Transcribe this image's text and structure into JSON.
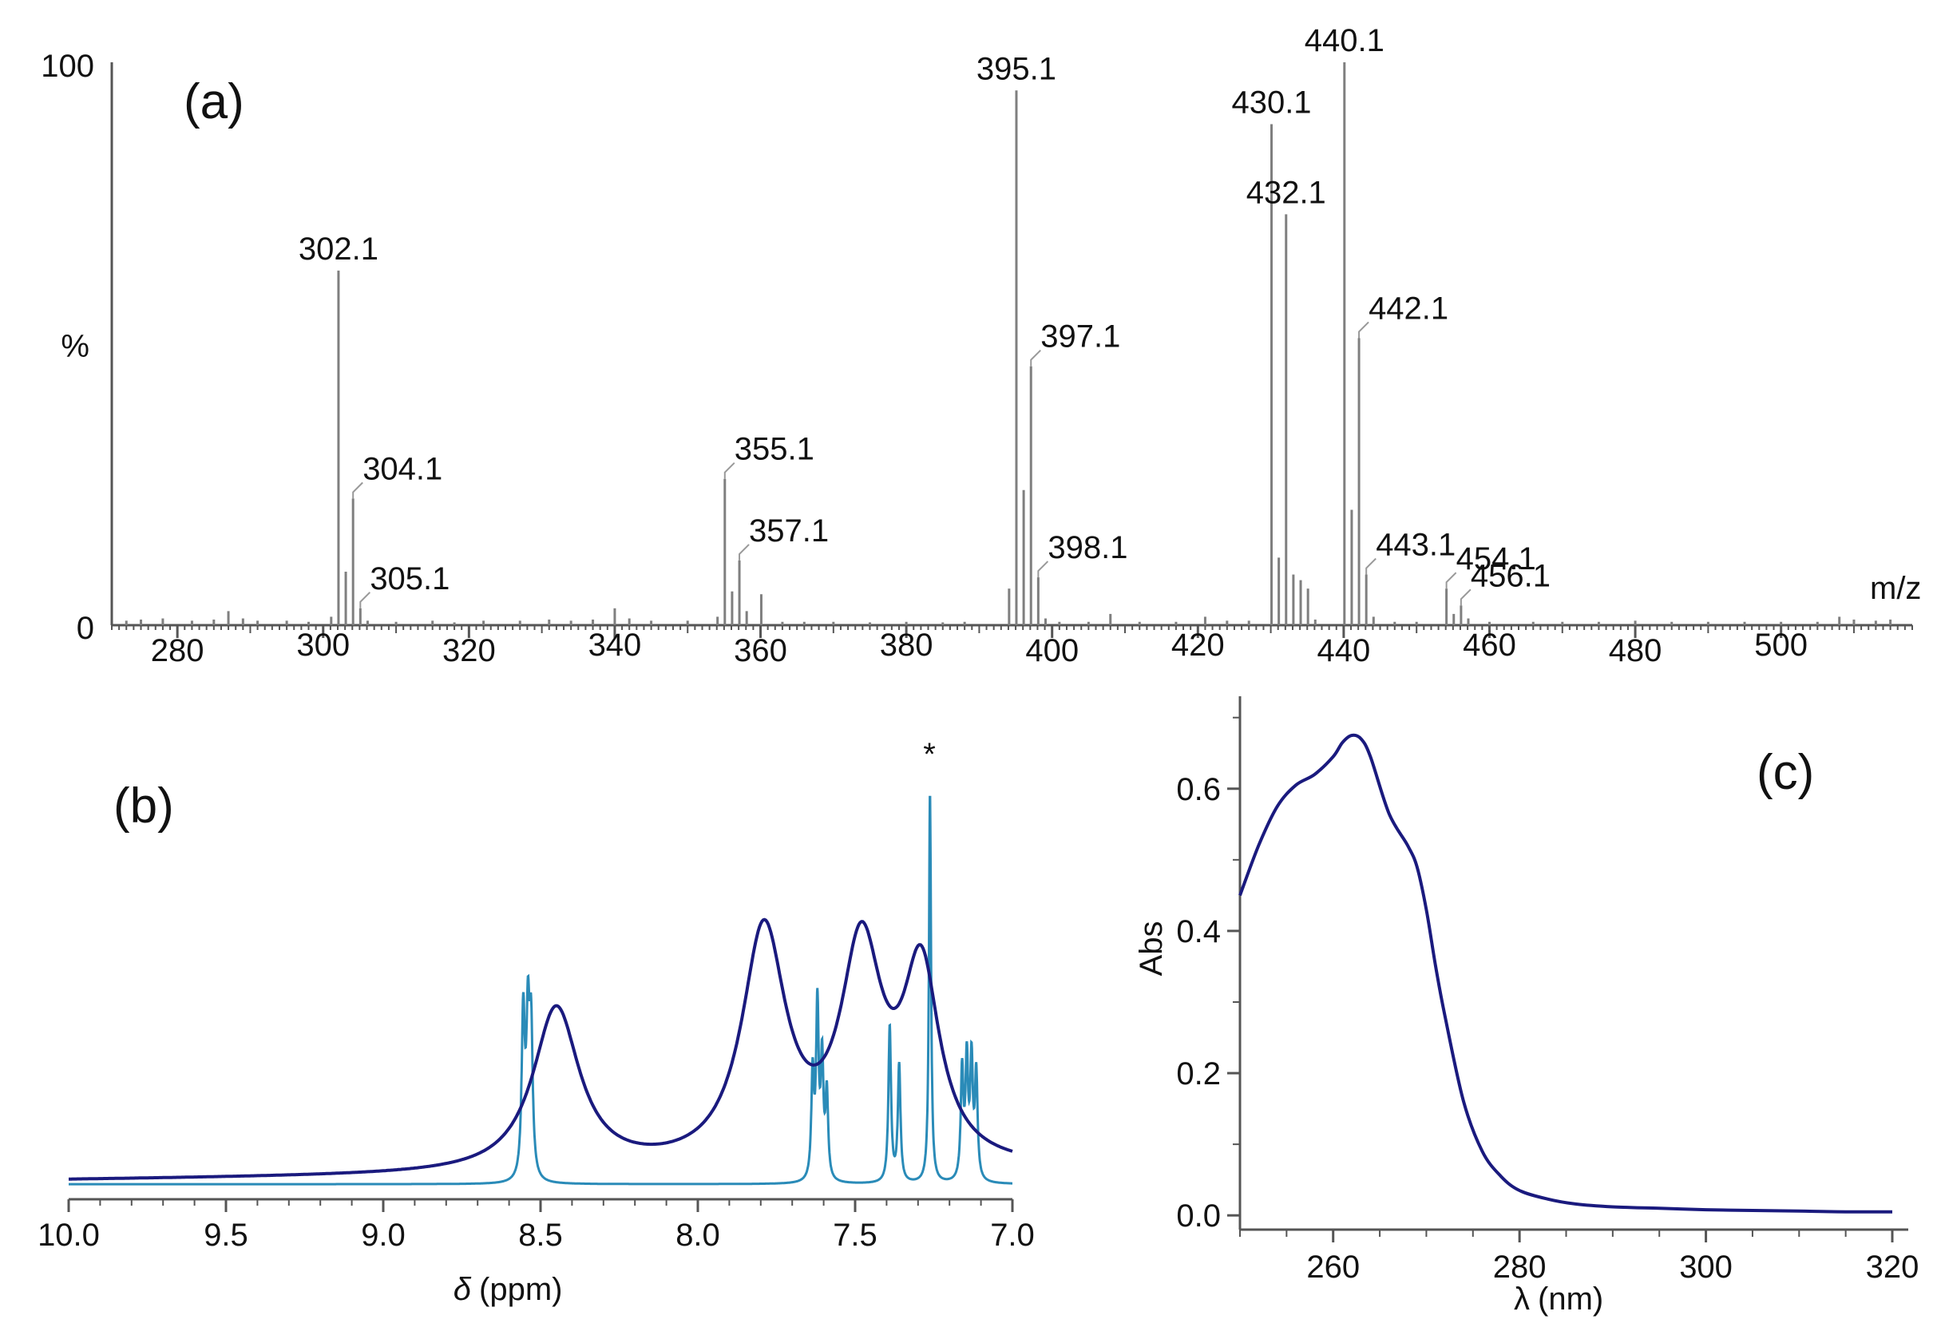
{
  "colors": {
    "axis": "#555555",
    "ms_peak": "#7f7f7f",
    "nmr_broad": "#1a1a7e",
    "nmr_sharp": "#2a8bb8",
    "uv": "#1a1a7e"
  },
  "chart_data": [
    {
      "panel": "(a)",
      "type": "bar",
      "xlabel": "m/z",
      "ylabel": "%",
      "xlim": [
        271,
        518
      ],
      "ylim": [
        0,
        100
      ],
      "x_ticks": [
        "280",
        "300",
        "320",
        "340",
        "360",
        "380",
        "400",
        "420",
        "440",
        "460",
        "480",
        "500"
      ],
      "y_ticks": [
        "0",
        "%",
        "100"
      ],
      "peaks": [
        {
          "x": 273.0,
          "y": 0.8
        },
        {
          "x": 275.0,
          "y": 1.0
        },
        {
          "x": 278.0,
          "y": 1.2
        },
        {
          "x": 282.0,
          "y": 0.8
        },
        {
          "x": 285.0,
          "y": 1.0
        },
        {
          "x": 287.0,
          "y": 2.5
        },
        {
          "x": 289.0,
          "y": 1.2
        },
        {
          "x": 291.0,
          "y": 0.8
        },
        {
          "x": 295.0,
          "y": 0.8
        },
        {
          "x": 298.0,
          "y": 0.6
        },
        {
          "x": 301.1,
          "y": 1.5
        },
        {
          "x": 302.1,
          "y": 63.0
        },
        {
          "x": 303.1,
          "y": 9.5
        },
        {
          "x": 304.1,
          "y": 22.5
        },
        {
          "x": 305.1,
          "y": 3.0
        },
        {
          "x": 306.1,
          "y": 0.8
        },
        {
          "x": 310.0,
          "y": 0.6
        },
        {
          "x": 315.0,
          "y": 0.8
        },
        {
          "x": 318.0,
          "y": 0.5
        },
        {
          "x": 322.0,
          "y": 0.8
        },
        {
          "x": 327.0,
          "y": 0.8
        },
        {
          "x": 331.0,
          "y": 1.0
        },
        {
          "x": 334.0,
          "y": 0.8
        },
        {
          "x": 337.0,
          "y": 1.0
        },
        {
          "x": 340.0,
          "y": 3.0
        },
        {
          "x": 342.0,
          "y": 1.2
        },
        {
          "x": 345.0,
          "y": 0.8
        },
        {
          "x": 350.0,
          "y": 0.8
        },
        {
          "x": 354.1,
          "y": 1.5
        },
        {
          "x": 355.1,
          "y": 26.0
        },
        {
          "x": 356.1,
          "y": 6.0
        },
        {
          "x": 357.1,
          "y": 11.5
        },
        {
          "x": 358.1,
          "y": 2.5
        },
        {
          "x": 360.1,
          "y": 5.5
        },
        {
          "x": 363.0,
          "y": 0.6
        },
        {
          "x": 366.0,
          "y": 0.6
        },
        {
          "x": 370.0,
          "y": 0.6
        },
        {
          "x": 375.0,
          "y": 0.5
        },
        {
          "x": 380.0,
          "y": 0.6
        },
        {
          "x": 385.0,
          "y": 0.5
        },
        {
          "x": 388.0,
          "y": 0.6
        },
        {
          "x": 394.1,
          "y": 6.5
        },
        {
          "x": 395.1,
          "y": 95.0
        },
        {
          "x": 396.1,
          "y": 24.0
        },
        {
          "x": 397.1,
          "y": 46.0
        },
        {
          "x": 398.1,
          "y": 8.5
        },
        {
          "x": 399.1,
          "y": 1.2
        },
        {
          "x": 401.0,
          "y": 0.6
        },
        {
          "x": 405.0,
          "y": 0.6
        },
        {
          "x": 408.0,
          "y": 2.0
        },
        {
          "x": 412.0,
          "y": 0.6
        },
        {
          "x": 417.0,
          "y": 0.6
        },
        {
          "x": 421.0,
          "y": 1.5
        },
        {
          "x": 424.0,
          "y": 0.8
        },
        {
          "x": 427.0,
          "y": 0.8
        },
        {
          "x": 430.1,
          "y": 89.0
        },
        {
          "x": 431.1,
          "y": 12.0
        },
        {
          "x": 432.1,
          "y": 73.0
        },
        {
          "x": 433.1,
          "y": 9.0
        },
        {
          "x": 434.1,
          "y": 8.0
        },
        {
          "x": 435.1,
          "y": 6.5
        },
        {
          "x": 436.1,
          "y": 1.0
        },
        {
          "x": 440.1,
          "y": 100.0
        },
        {
          "x": 441.1,
          "y": 20.5
        },
        {
          "x": 442.1,
          "y": 51.0
        },
        {
          "x": 443.1,
          "y": 9.0
        },
        {
          "x": 444.1,
          "y": 1.5
        },
        {
          "x": 447.0,
          "y": 0.6
        },
        {
          "x": 450.0,
          "y": 0.6
        },
        {
          "x": 454.1,
          "y": 6.5
        },
        {
          "x": 455.1,
          "y": 2.0
        },
        {
          "x": 456.1,
          "y": 3.5
        },
        {
          "x": 457.1,
          "y": 1.2
        },
        {
          "x": 460.0,
          "y": 0.6
        },
        {
          "x": 466.0,
          "y": 0.6
        },
        {
          "x": 470.0,
          "y": 0.6
        },
        {
          "x": 475.0,
          "y": 0.6
        },
        {
          "x": 480.0,
          "y": 0.8
        },
        {
          "x": 485.0,
          "y": 0.6
        },
        {
          "x": 490.0,
          "y": 0.6
        },
        {
          "x": 495.0,
          "y": 0.6
        },
        {
          "x": 500.0,
          "y": 0.6
        },
        {
          "x": 505.0,
          "y": 0.6
        },
        {
          "x": 508.0,
          "y": 1.5
        },
        {
          "x": 510.0,
          "y": 1.0
        },
        {
          "x": 513.0,
          "y": 0.8
        },
        {
          "x": 515.0,
          "y": 1.0
        }
      ],
      "labels": [
        {
          "text": "302.1",
          "x": 302.1,
          "y": 63.0
        },
        {
          "text": "304.1",
          "x": 304.1,
          "y": 22.5
        },
        {
          "text": "305.1",
          "x": 305.1,
          "y": 3.0
        },
        {
          "text": "355.1",
          "x": 355.1,
          "y": 26.0
        },
        {
          "text": "357.1",
          "x": 357.1,
          "y": 11.5
        },
        {
          "text": "395.1",
          "x": 395.1,
          "y": 95.0
        },
        {
          "text": "397.1",
          "x": 397.1,
          "y": 46.0
        },
        {
          "text": "398.1",
          "x": 398.1,
          "y": 8.5
        },
        {
          "text": "430.1",
          "x": 430.1,
          "y": 89.0
        },
        {
          "text": "432.1",
          "x": 432.1,
          "y": 73.0
        },
        {
          "text": "440.1",
          "x": 440.1,
          "y": 100.0
        },
        {
          "text": "442.1",
          "x": 442.1,
          "y": 51.0
        },
        {
          "text": "443.1",
          "x": 443.1,
          "y": 9.0
        },
        {
          "text": "454.1",
          "x": 454.1,
          "y": 6.5
        },
        {
          "text": "456.1",
          "x": 456.1,
          "y": 3.5
        }
      ]
    },
    {
      "panel": "(b)",
      "type": "line",
      "xlabel_symbol": "δ",
      "xlabel_unit": "(ppm)",
      "xlim": [
        10.0,
        7.0
      ],
      "x_reversed": true,
      "x_ticks": [
        "10.0",
        "9.5",
        "9.0",
        "8.5",
        "8.0",
        "7.5",
        "7.0"
      ],
      "annotation": "*",
      "series": [
        {
          "kind": "broad",
          "baseline": [
            0.02,
            0.045
          ],
          "peaks": [
            {
              "x": 8.45,
              "h": 0.42,
              "w": 0.09
            },
            {
              "x": 7.79,
              "h": 0.6,
              "w": 0.085
            },
            {
              "x": 7.48,
              "h": 0.54,
              "w": 0.08
            },
            {
              "x": 7.29,
              "h": 0.48,
              "w": 0.07
            }
          ]
        },
        {
          "kind": "sharp",
          "baseline": [
            0.01,
            0.01
          ],
          "peaks": [
            {
              "x": 8.555,
              "h": 0.42,
              "w": 0.006
            },
            {
              "x": 8.54,
              "h": 0.38,
              "w": 0.006
            },
            {
              "x": 8.53,
              "h": 0.36,
              "w": 0.006
            },
            {
              "x": 7.635,
              "h": 0.27,
              "w": 0.005
            },
            {
              "x": 7.62,
              "h": 0.44,
              "w": 0.005
            },
            {
              "x": 7.605,
              "h": 0.3,
              "w": 0.005
            },
            {
              "x": 7.59,
              "h": 0.22,
              "w": 0.005
            },
            {
              "x": 7.39,
              "h": 0.4,
              "w": 0.005
            },
            {
              "x": 7.36,
              "h": 0.3,
              "w": 0.005
            },
            {
              "x": 7.262,
              "h": 1.0,
              "w": 0.004
            },
            {
              "x": 7.16,
              "h": 0.28,
              "w": 0.005
            },
            {
              "x": 7.145,
              "h": 0.3,
              "w": 0.005
            },
            {
              "x": 7.13,
              "h": 0.3,
              "w": 0.005
            },
            {
              "x": 7.115,
              "h": 0.27,
              "w": 0.005
            }
          ]
        }
      ]
    },
    {
      "panel": "(c)",
      "type": "line",
      "xlabel_symbol": "λ",
      "xlabel_unit": "(nm)",
      "ylabel": "Abs",
      "xlim": [
        250,
        320
      ],
      "ylim": [
        -0.02,
        0.73
      ],
      "x_ticks": [
        "260",
        "280",
        "300",
        "320"
      ],
      "y_ticks": [
        "0.0",
        "0.2",
        "0.4",
        "0.6"
      ],
      "x": [
        250,
        252,
        254,
        256,
        258,
        260,
        261,
        262,
        263,
        264,
        266,
        268,
        269,
        270,
        271,
        272,
        274,
        276,
        278,
        280,
        283,
        286,
        290,
        295,
        300,
        305,
        310,
        315,
        320
      ],
      "y": [
        0.45,
        0.52,
        0.575,
        0.605,
        0.62,
        0.645,
        0.665,
        0.675,
        0.67,
        0.645,
        0.565,
        0.52,
        0.49,
        0.43,
        0.35,
        0.28,
        0.16,
        0.09,
        0.055,
        0.035,
        0.023,
        0.016,
        0.012,
        0.01,
        0.008,
        0.007,
        0.006,
        0.005,
        0.005
      ]
    }
  ]
}
